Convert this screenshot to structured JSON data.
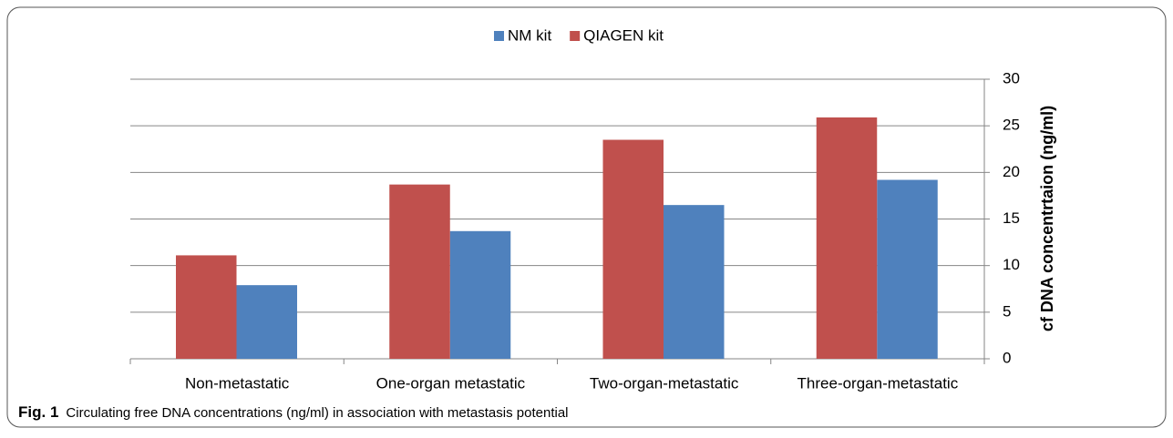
{
  "chart_data": {
    "type": "bar",
    "categories": [
      "Non-metastatic",
      "One-organ metastatic",
      "Two-organ-metastatic",
      "Three-organ-metastatic"
    ],
    "series": [
      {
        "name": "NM kit",
        "color": "#4f81bd",
        "values": [
          7.9,
          13.7,
          16.5,
          19.2
        ]
      },
      {
        "name": "QIAGEN kit",
        "color": "#c0504d",
        "values": [
          11.1,
          18.7,
          23.5,
          25.9
        ]
      }
    ],
    "ylabel": "cf DNA concentrtaion (ng/ml)",
    "ylim": [
      0,
      30
    ],
    "yticks": [
      0,
      5,
      10,
      15,
      20,
      25,
      30
    ],
    "grid": true,
    "legend": "top"
  },
  "caption": {
    "label": "Fig. 1",
    "text": "Circulating free DNA concentrations (ng/ml) in association with metastasis potential"
  }
}
